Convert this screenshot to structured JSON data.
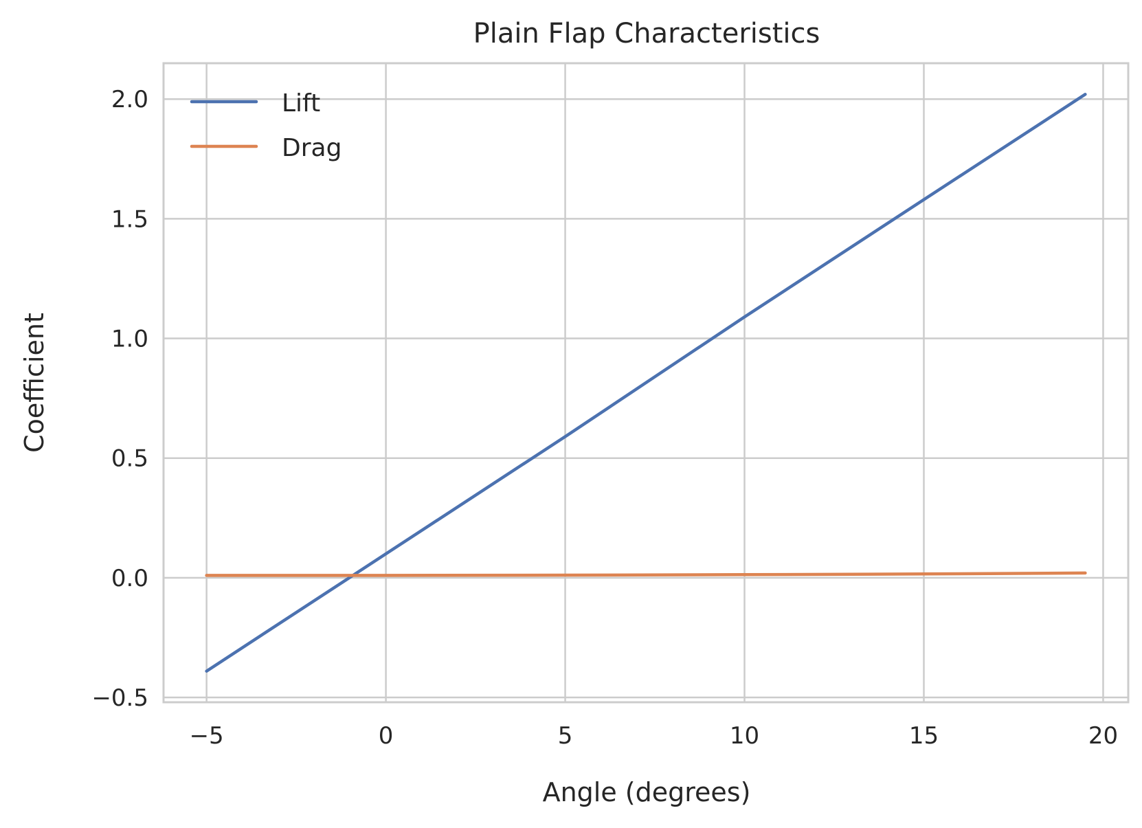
{
  "chart_data": {
    "type": "line",
    "title": "Plain Flap Characteristics",
    "xlabel": "Angle (degrees)",
    "ylabel": "Coefficient",
    "xlim": [
      -6.2,
      20.7
    ],
    "ylim": [
      -0.52,
      2.15
    ],
    "xticks": [
      -5,
      0,
      5,
      10,
      15,
      20
    ],
    "xtick_labels": [
      "−5",
      "0",
      "5",
      "10",
      "15",
      "20"
    ],
    "yticks": [
      -0.5,
      0.0,
      0.5,
      1.0,
      1.5,
      2.0
    ],
    "ytick_labels": [
      "−0.5",
      "0.0",
      "0.5",
      "1.0",
      "1.5",
      "2.0"
    ],
    "grid": true,
    "legend_position": "top-left",
    "x": [
      -5,
      0,
      5,
      10,
      15,
      19.5
    ],
    "series": [
      {
        "name": "Lift",
        "color": "#4c72b0",
        "values": [
          -0.39,
          0.1,
          0.59,
          1.09,
          1.58,
          2.02
        ]
      },
      {
        "name": "Drag",
        "color": "#dd8452",
        "values": [
          0.01,
          0.01,
          0.011,
          0.013,
          0.016,
          0.02
        ]
      }
    ]
  }
}
